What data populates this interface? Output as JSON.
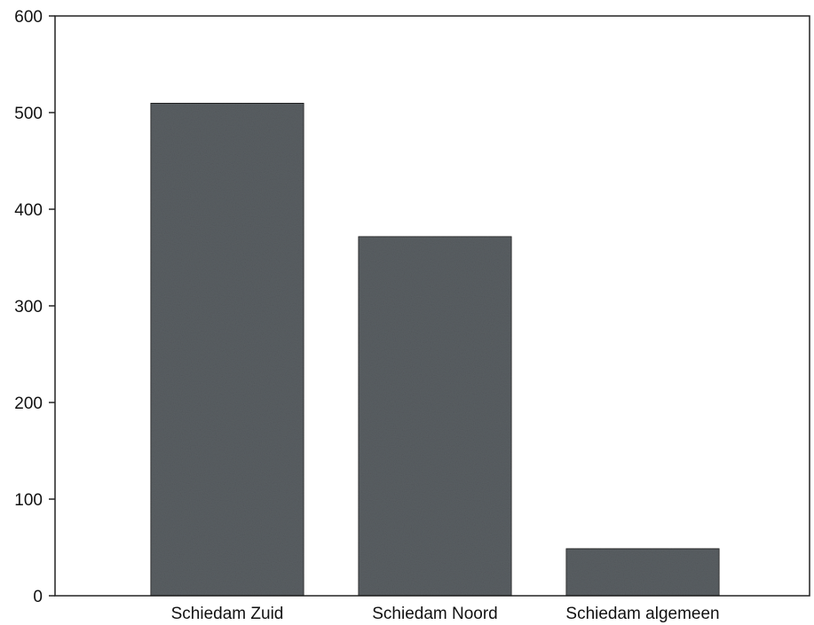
{
  "chart_data": {
    "type": "bar",
    "title": "",
    "xlabel": "",
    "ylabel": "",
    "categories": [
      "Schiedam Zuid",
      "Schiedam Noord",
      "Schiedam algemeen"
    ],
    "values": [
      510,
      372,
      49
    ],
    "ylim": [
      0,
      600
    ],
    "yticks": [
      0,
      100,
      200,
      300,
      400,
      500,
      600
    ],
    "grid": false,
    "legend": "none",
    "bar_color": "#5a5f63",
    "bar_stroke": "#1a1a1a",
    "axis_color": "#222222"
  }
}
